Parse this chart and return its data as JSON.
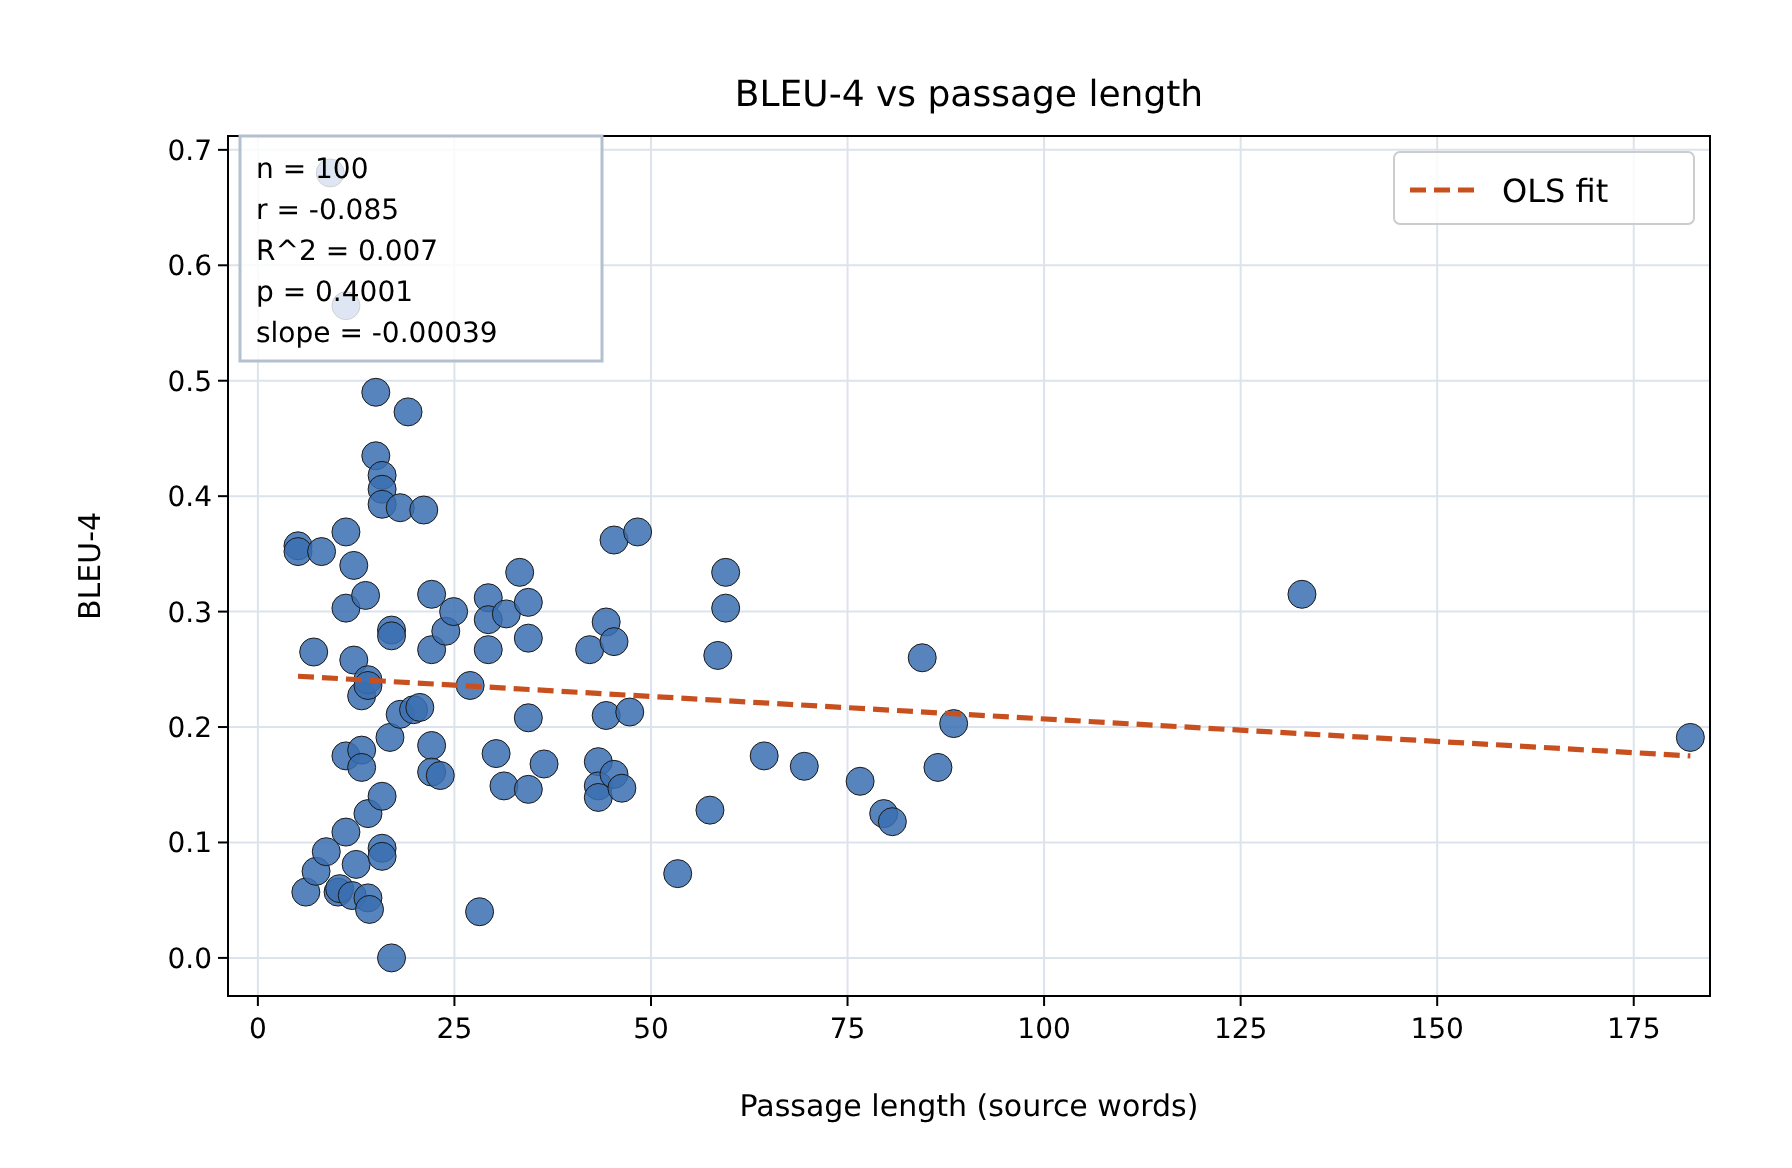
{
  "chart_data": {
    "type": "scatter",
    "title": "BLEU-4 vs passage length",
    "xlabel": "Passage length (source words)",
    "ylabel": "BLEU-4",
    "xlim": [
      -3.8,
      184.7
    ],
    "ylim": [
      -0.033,
      0.712
    ],
    "xticks": [
      0,
      25,
      50,
      75,
      100,
      125,
      150,
      175
    ],
    "yticks": [
      {
        "value": 0,
        "label": "0.0"
      },
      0.1,
      0.2,
      0.3,
      0.4,
      0.5,
      0.6,
      0.7
    ],
    "grid": true,
    "legend": "top right",
    "annotations": [
      "n = 100",
      "r = -0.085",
      "R^2 = 0.007",
      "p = 0.4001",
      "slope = -0.00039"
    ],
    "series": [
      {
        "marker": "circle",
        "color": "#3a6eb0",
        "x": [
          9.2,
          11.2,
          5.1,
          5.1,
          6.1,
          7.1,
          7.4,
          8.1,
          8.7,
          10.2,
          10.4,
          11.2,
          11.2,
          11.2,
          11.2,
          12,
          12.2,
          12.2,
          12.5,
          13.2,
          13.2,
          13.2,
          13.7,
          14,
          14,
          14,
          14,
          14.2,
          15,
          15,
          15.8,
          15.8,
          15.8,
          15.8,
          15.8,
          15.8,
          16.8,
          17,
          17,
          17,
          18.1,
          18.1,
          19.1,
          19.8,
          20.6,
          21.1,
          22.1,
          22.1,
          22.1,
          22.1,
          23.2,
          23.9,
          24.9,
          27,
          28.2,
          29.3,
          29.3,
          29.3,
          30.3,
          31.3,
          31.6,
          33.3,
          34.4,
          34.4,
          34.4,
          34.4,
          36.4,
          42.2,
          43.3,
          43.3,
          43.3,
          44.3,
          44.3,
          45.3,
          45.3,
          45.3,
          46.3,
          47.3,
          48.3,
          53.4,
          57.5,
          58.5,
          59.5,
          59.5,
          64.4,
          69.5,
          76.6,
          79.6,
          80.7,
          84.5,
          86.5,
          88.5,
          132.8,
          182.2
        ],
        "values": [
          0.68,
          0.565,
          0.357,
          0.352,
          0.057,
          0.265,
          0.075,
          0.352,
          0.092,
          0.057,
          0.06,
          0.369,
          0.303,
          0.175,
          0.109,
          0.054,
          0.34,
          0.258,
          0.081,
          0.227,
          0.18,
          0.165,
          0.314,
          0.241,
          0.236,
          0.125,
          0.052,
          0.042,
          0.49,
          0.435,
          0.418,
          0.406,
          0.393,
          0.095,
          0.088,
          0.14,
          0.191,
          0.284,
          0.279,
          0.0,
          0.39,
          0.211,
          0.473,
          0.215,
          0.217,
          0.388,
          0.315,
          0.267,
          0.184,
          0.161,
          0.158,
          0.283,
          0.3,
          0.236,
          0.04,
          0.312,
          0.293,
          0.267,
          0.177,
          0.149,
          0.298,
          0.334,
          0.308,
          0.277,
          0.208,
          0.146,
          0.168,
          0.267,
          0.17,
          0.149,
          0.139,
          0.291,
          0.21,
          0.362,
          0.274,
          0.159,
          0.147,
          0.213,
          0.369,
          0.073,
          0.128,
          0.262,
          0.334,
          0.303,
          0.175,
          0.166,
          0.153,
          0.125,
          0.118,
          0.26,
          0.165,
          0.203,
          0.315,
          0.191
        ]
      },
      {
        "type": "line",
        "name": "OLS fit",
        "color": "#c8501e",
        "line_style": "dashed",
        "x": [
          5.1,
          182.2
        ],
        "values": [
          0.244,
          0.175
        ]
      }
    ]
  }
}
